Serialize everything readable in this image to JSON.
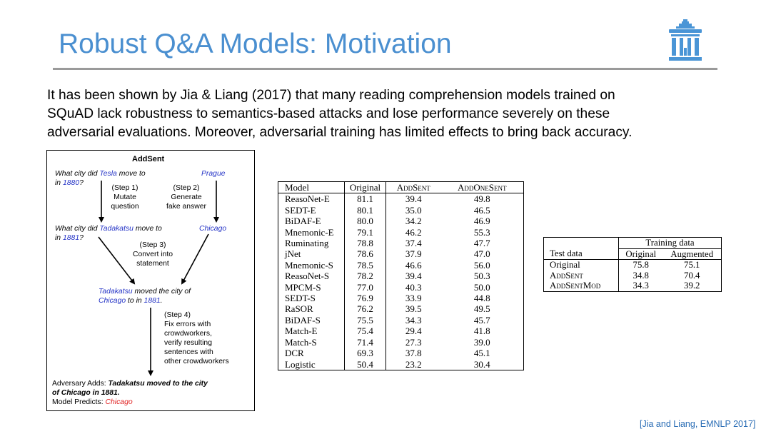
{
  "title": "Robust Q&A Models: Motivation",
  "intro_lines": [
    "It has been shown by Jia & Liang (2017) that many reading comprehension models trained on",
    "SQuAD lack robustness to semantics-based attacks and lose performance severely on these",
    "adversarial evaluations. Moreover, adversarial training has limited effects to bring back accuracy."
  ],
  "diagram": {
    "heading": "AddSent",
    "q1_pre": "What city did ",
    "q1_ent": "Tesla",
    "q1_post": " move to",
    "q1_line2_pre": "in ",
    "q1_year": "1880",
    "q1_line2_post": "?",
    "answer1": "Prague",
    "step1": [
      "(Step 1)",
      "Mutate",
      "question"
    ],
    "step2": [
      "(Step 2)",
      "Generate",
      "fake answer"
    ],
    "q2_pre": "What city did ",
    "q2_ent": "Tadakatsu",
    "q2_post": " move to",
    "q2_line2_pre": "in ",
    "q2_year": "1881",
    "q2_line2_post": "?",
    "answer2": "Chicago",
    "step3": [
      "(Step 3)",
      "Convert into",
      "statement"
    ],
    "stmt_ent": "Tadakatsu",
    "stmt_mid": " moved the city of",
    "stmt_city": "Chicago",
    "stmt_to": " to in ",
    "stmt_year": "1881",
    "stmt_end": ".",
    "step4": [
      "(Step 4)",
      "Fix errors with",
      "crowdworkers,",
      "verify resulting",
      "sentences with",
      "other crowdworkers"
    ],
    "adds_label": "Adversary Adds: ",
    "adds_text_line1": "Tadakatsu moved to the city",
    "adds_text_line2": "of Chicago in 1881.",
    "predicts_label": "Model Predicts: ",
    "predicts_value": "Chicago"
  },
  "table1": {
    "headers": [
      "Model",
      "Original",
      "AddSent",
      "AddOneSent"
    ],
    "rows": [
      {
        "model": "ReasoNet-E",
        "original": "81.1",
        "addsent": "39.4",
        "addonesent": "49.8",
        "bold": [
          "original"
        ]
      },
      {
        "model": "SEDT-E",
        "original": "80.1",
        "addsent": "35.0",
        "addonesent": "46.5",
        "bold": []
      },
      {
        "model": "BiDAF-E",
        "original": "80.0",
        "addsent": "34.2",
        "addonesent": "46.9",
        "bold": []
      },
      {
        "model": "Mnemonic-E",
        "original": "79.1",
        "addsent": "46.2",
        "addonesent": "55.3",
        "bold": [
          "addsent",
          "addonesent"
        ]
      },
      {
        "model": "Ruminating",
        "original": "78.8",
        "addsent": "37.4",
        "addonesent": "47.7",
        "bold": []
      },
      {
        "model": "jNet",
        "original": "78.6",
        "addsent": "37.9",
        "addonesent": "47.0",
        "bold": []
      },
      {
        "model": "Mnemonic-S",
        "original": "78.5",
        "addsent": "46.6",
        "addonesent": "56.0",
        "bold": [
          "addsent",
          "addonesent"
        ]
      },
      {
        "model": "ReasoNet-S",
        "original": "78.2",
        "addsent": "39.4",
        "addonesent": "50.3",
        "bold": []
      },
      {
        "model": "MPCM-S",
        "original": "77.0",
        "addsent": "40.3",
        "addonesent": "50.0",
        "bold": []
      },
      {
        "model": "SEDT-S",
        "original": "76.9",
        "addsent": "33.9",
        "addonesent": "44.8",
        "bold": []
      },
      {
        "model": "RaSOR",
        "original": "76.2",
        "addsent": "39.5",
        "addonesent": "49.5",
        "bold": []
      },
      {
        "model": "BiDAF-S",
        "original": "75.5",
        "addsent": "34.3",
        "addonesent": "45.7",
        "bold": []
      },
      {
        "model": "Match-E",
        "original": "75.4",
        "addsent": "29.4",
        "addonesent": "41.8",
        "bold": []
      },
      {
        "model": "Match-S",
        "original": "71.4",
        "addsent": "27.3",
        "addonesent": "39.0",
        "bold": []
      },
      {
        "model": "DCR",
        "original": "69.3",
        "addsent": "37.8",
        "addonesent": "45.1",
        "bold": []
      },
      {
        "model": "Logistic",
        "original": "50.4",
        "addsent": "23.2",
        "addonesent": "30.4",
        "bold": []
      }
    ]
  },
  "table2": {
    "group_header": "Training data",
    "headers": [
      "Test data",
      "Original",
      "Augmented"
    ],
    "rows": [
      {
        "test": "Original",
        "original": "75.8",
        "augmented": "75.1"
      },
      {
        "test": "AddSent",
        "original": "34.8",
        "augmented": "70.4"
      },
      {
        "test": "AddSentMod",
        "original": "34.3",
        "augmented": "39.2"
      }
    ]
  },
  "citation": "[Jia and Liang, EMNLP 2017]",
  "colors": {
    "title": "#4a8fd0",
    "entity": "#2433c6",
    "prediction": "#e02020",
    "logo": "#4a95d6"
  },
  "logo_icon": "columned-building-logo-icon"
}
